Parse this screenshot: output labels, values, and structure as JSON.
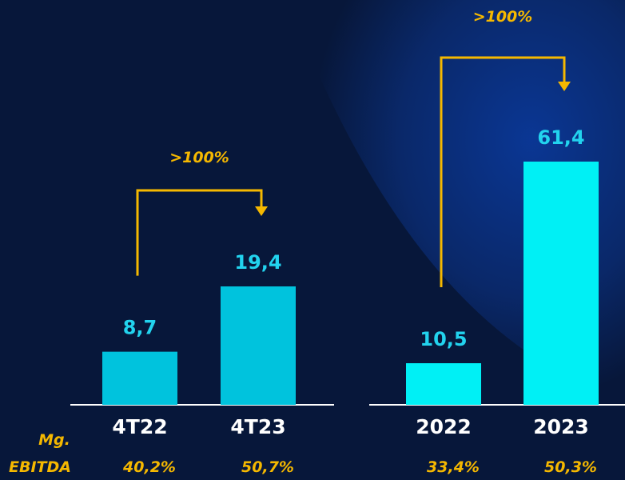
{
  "chart_data": [
    {
      "type": "bar",
      "categories": [
        "4T22",
        "4T23"
      ],
      "values": [
        8.7,
        19.4
      ],
      "value_labels": [
        "8,7",
        "19,4"
      ],
      "color": "#00c3dd",
      "annotation": ">100%",
      "ebitda_margins": [
        "40,2%",
        "50,7%"
      ]
    },
    {
      "type": "bar",
      "categories": [
        "2022",
        "2023"
      ],
      "values": [
        10.5,
        61.4
      ],
      "value_labels": [
        "10,5",
        "61,4"
      ],
      "color": "#00f0f5",
      "annotation": ">100%",
      "ebitda_margins": [
        "33,4%",
        "50,3%"
      ]
    }
  ],
  "margin_label": [
    "Mg.",
    "EBITDA"
  ]
}
